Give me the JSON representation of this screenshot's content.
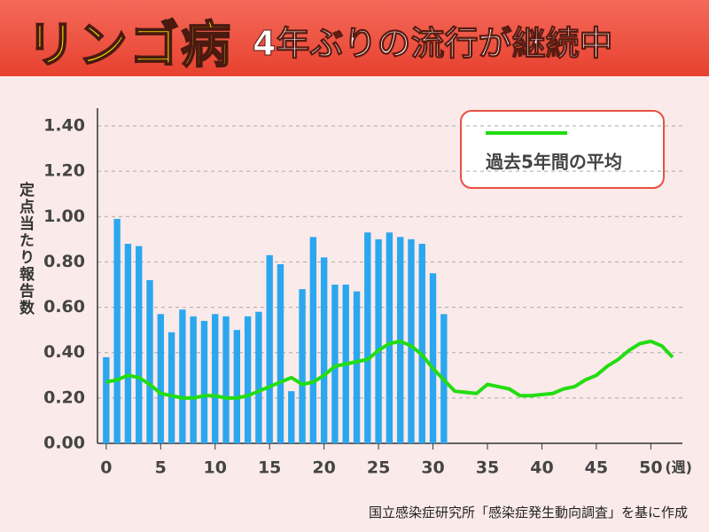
{
  "chart_data": {
    "type": "bar",
    "title": "リンゴ病",
    "subtitle": "4年ぶりの流行が継続中",
    "y_label": "定点当たり報告数",
    "x_label": "(週)",
    "source": "国立感染症研究所「感染症発生動向調査」を基に作成",
    "xlim": [
      -0.8,
      52.9
    ],
    "xticks": [
      0,
      5,
      10,
      15,
      20,
      25,
      30,
      35,
      40,
      45,
      50
    ],
    "ylim": [
      0,
      1.4
    ],
    "yticks": [
      {
        "value": 0,
        "label": "0.00"
      },
      {
        "value": 0.2,
        "label": "0.20"
      },
      {
        "value": 0.4,
        "label": "0.40"
      },
      {
        "value": 0.6,
        "label": "0.60"
      },
      {
        "value": 0.8,
        "label": "0.80"
      },
      {
        "value": 1.0,
        "label": "1.00"
      },
      {
        "value": 1.2,
        "label": "1.20"
      },
      {
        "value": 1.4,
        "label": "1.40"
      }
    ],
    "grid": true,
    "series": [
      {
        "type": "bar",
        "color": "#2aa7ef",
        "x": [
          0,
          1,
          2,
          3,
          4,
          5,
          6,
          7,
          8,
          9,
          10,
          11,
          12,
          13,
          14,
          15,
          16,
          17,
          18,
          19,
          20,
          21,
          22,
          23,
          24,
          25,
          26,
          27,
          28,
          29,
          30,
          31
        ],
        "values": [
          0.38,
          0.99,
          0.88,
          0.87,
          0.72,
          0.57,
          0.49,
          0.59,
          0.56,
          0.54,
          0.57,
          0.56,
          0.5,
          0.56,
          0.58,
          0.83,
          0.79,
          0.23,
          0.68,
          0.91,
          0.82,
          0.7,
          0.7,
          0.67,
          0.93,
          0.9,
          0.93,
          0.91,
          0.9,
          0.88,
          0.75,
          0.57
        ]
      },
      {
        "type": "line",
        "name": "過去5年間の平均",
        "color": "#22dd11",
        "x": [
          0,
          1,
          2,
          3,
          4,
          5,
          6,
          7,
          8,
          9,
          10,
          11,
          12,
          13,
          14,
          15,
          16,
          17,
          18,
          19,
          20,
          21,
          22,
          23,
          24,
          25,
          26,
          27,
          28,
          29,
          30,
          31,
          32,
          33,
          34,
          35,
          36,
          37,
          38,
          39,
          40,
          41,
          42,
          43,
          44,
          45,
          46,
          47,
          48,
          49,
          50,
          51,
          52
        ],
        "values": [
          0.27,
          0.28,
          0.3,
          0.29,
          0.26,
          0.22,
          0.21,
          0.2,
          0.2,
          0.21,
          0.21,
          0.2,
          0.2,
          0.21,
          0.23,
          0.25,
          0.27,
          0.29,
          0.26,
          0.27,
          0.3,
          0.34,
          0.35,
          0.36,
          0.37,
          0.41,
          0.44,
          0.45,
          0.43,
          0.39,
          0.33,
          0.28,
          0.23,
          0.225,
          0.22,
          0.26,
          0.25,
          0.24,
          0.21,
          0.21,
          0.215,
          0.22,
          0.24,
          0.25,
          0.28,
          0.3,
          0.34,
          0.37,
          0.41,
          0.44,
          0.45,
          0.43,
          0.38
        ]
      }
    ]
  }
}
